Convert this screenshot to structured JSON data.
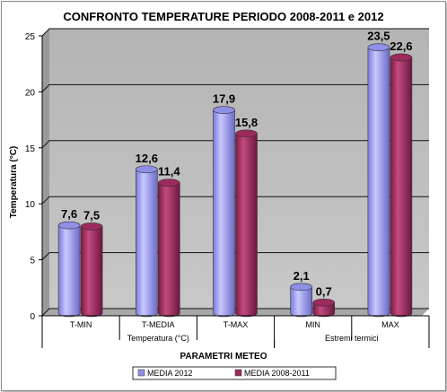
{
  "chart_data": {
    "type": "bar",
    "title": "CONFRONTO TEMPERATURE PERIODO 2008-2011 e 2012",
    "xlabel": "PARAMETRI METEO",
    "ylabel": "Temperatura (°C)",
    "ylim": [
      0,
      25
    ],
    "yticks": [
      0,
      5,
      10,
      15,
      20,
      25
    ],
    "categories": [
      "T-MIN",
      "T-MEDIA",
      "T-MAX",
      "MIN",
      "MAX"
    ],
    "groups": [
      {
        "label": "Temperatura (°C)",
        "categories": [
          "T-MIN",
          "T-MEDIA",
          "T-MAX"
        ]
      },
      {
        "label": "Estremi termici",
        "categories": [
          "MIN",
          "MAX"
        ]
      }
    ],
    "series": [
      {
        "name": "MEDIA 2012",
        "values": [
          7.6,
          12.6,
          17.9,
          2.1,
          23.5
        ],
        "labels": [
          "7,6",
          "12,6",
          "17,9",
          "2,1",
          "23,5"
        ],
        "color": "#8f8fe8"
      },
      {
        "name": "MEDIA 2008-2011",
        "values": [
          7.5,
          11.4,
          15.8,
          0.7,
          22.6
        ],
        "labels": [
          "7,5",
          "11,4",
          "15,8",
          "0,7",
          "22,6"
        ],
        "color": "#9c2a5c"
      }
    ],
    "grid": true,
    "legend": "bottom",
    "plot_background": "#c0c0c0"
  }
}
